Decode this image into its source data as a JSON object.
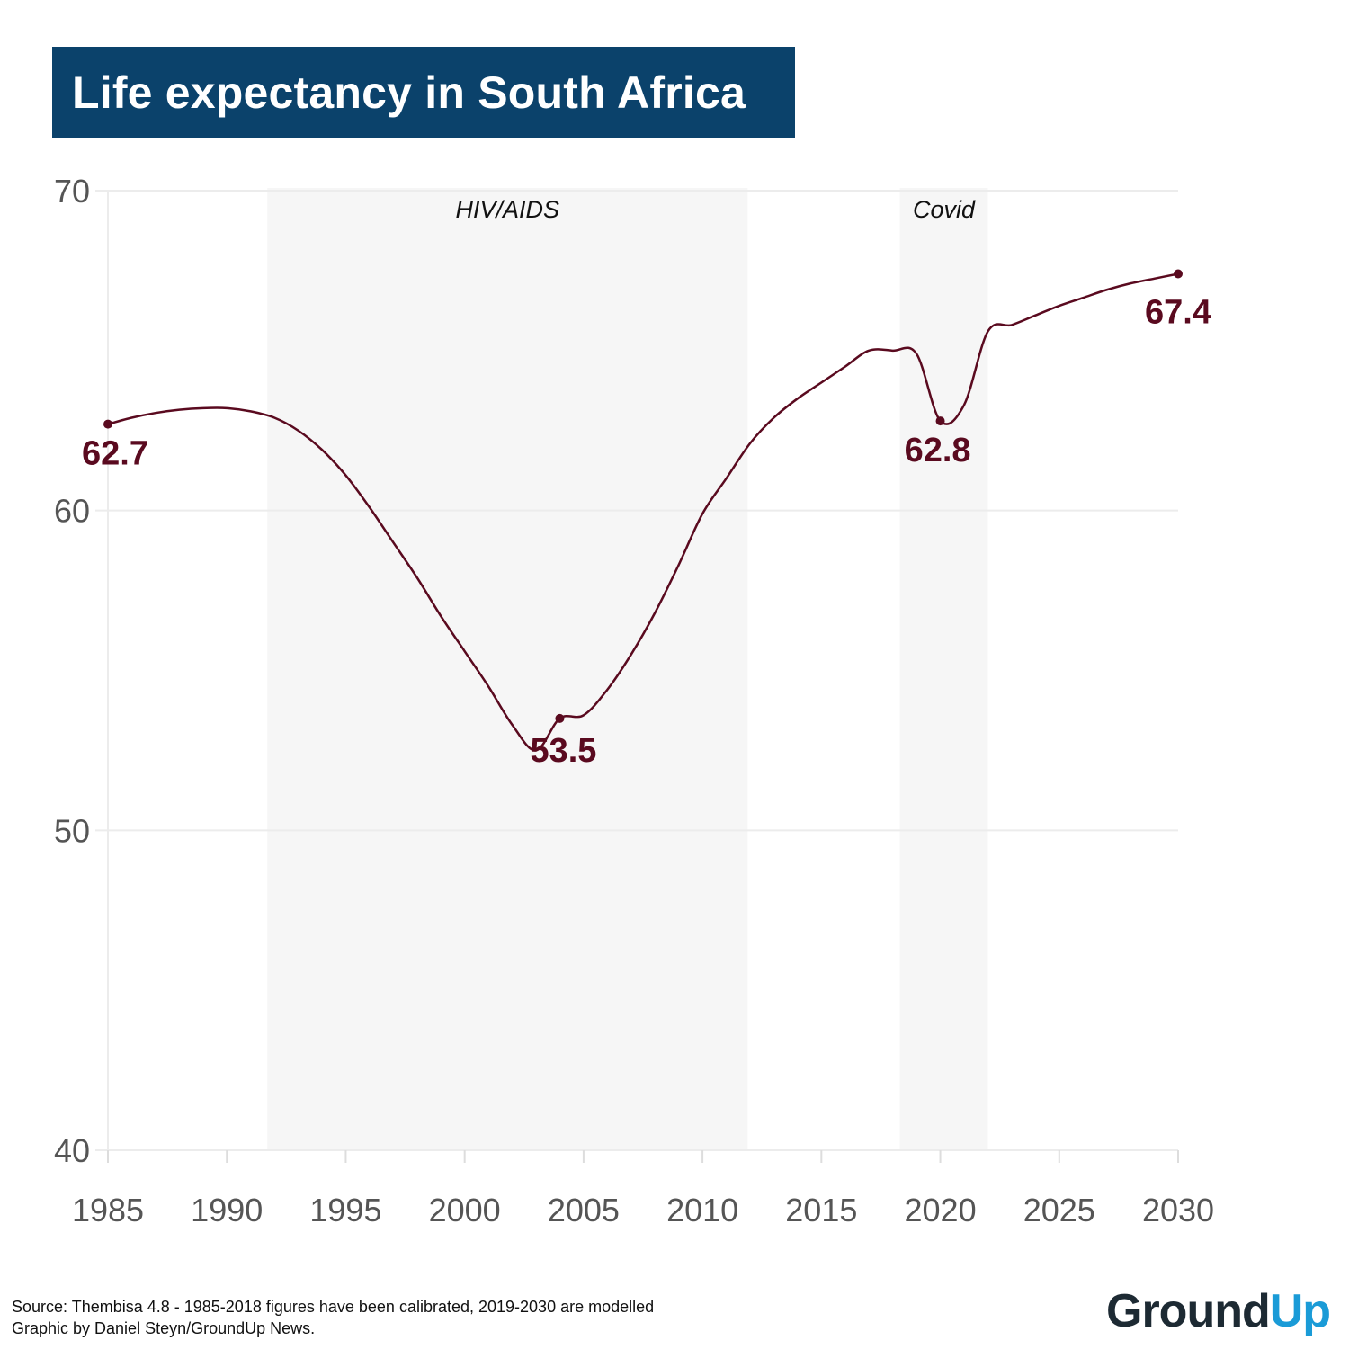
{
  "chart_data": {
    "type": "line",
    "title": "Life expectancy in South Africa",
    "xlabel": "",
    "ylabel": "",
    "xlim": [
      1985,
      2030
    ],
    "ylim": [
      40,
      70
    ],
    "x_ticks": [
      1985,
      1990,
      1995,
      2000,
      2005,
      2010,
      2015,
      2020,
      2025,
      2030
    ],
    "y_ticks": [
      40,
      50,
      60,
      70
    ],
    "grid": true,
    "bands": [
      {
        "label": "HIV/AIDS",
        "start": 1991.7,
        "end": 2011.9,
        "color": "#f6f6f6"
      },
      {
        "label": "Covid",
        "start": 2018.3,
        "end": 2022.0,
        "color": "#f6f6f6"
      }
    ],
    "series": [
      {
        "name": "Life expectancy",
        "color": "#5a0a1f",
        "x": [
          1985,
          1986,
          1987,
          1988,
          1989,
          1990,
          1991,
          1992,
          1993,
          1994,
          1995,
          1996,
          1997,
          1998,
          1999,
          2000,
          2001,
          2002,
          2003,
          2004,
          2005,
          2006,
          2007,
          2008,
          2009,
          2010,
          2011,
          2012,
          2013,
          2014,
          2015,
          2016,
          2017,
          2018,
          2019,
          2020,
          2021,
          2022,
          2023,
          2024,
          2025,
          2026,
          2027,
          2028,
          2029,
          2030
        ],
        "values": [
          62.7,
          62.9,
          63.05,
          63.15,
          63.2,
          63.2,
          63.1,
          62.9,
          62.5,
          61.9,
          61.1,
          60.1,
          59.0,
          57.9,
          56.7,
          55.6,
          54.5,
          53.3,
          52.5,
          53.5,
          53.6,
          54.4,
          55.5,
          56.8,
          58.3,
          59.9,
          61.0,
          62.1,
          62.9,
          63.5,
          64.0,
          64.5,
          65.0,
          65.0,
          64.9,
          62.8,
          63.3,
          65.6,
          65.8,
          66.1,
          66.4,
          66.65,
          66.9,
          67.1,
          67.25,
          67.4
        ]
      }
    ],
    "annotations": [
      {
        "x": 1985,
        "y": 62.7,
        "label": "62.7"
      },
      {
        "x": 2004,
        "y": 53.5,
        "label": "53.5"
      },
      {
        "x": 2020,
        "y": 62.8,
        "label": "62.8"
      },
      {
        "x": 2030,
        "y": 67.4,
        "label": "67.4"
      }
    ]
  },
  "footer": {
    "source": "Source: Thembisa 4.8 - 1985-2018 figures have been calibrated, 2019-2030 are modelled",
    "credit": "Graphic by Daniel Steyn/GroundUp News."
  },
  "logo": {
    "part1": "Ground",
    "part2": "Up"
  },
  "colors": {
    "title_bg": "#0b426b",
    "line": "#5a0a1f",
    "band": "#f6f6f6",
    "grid": "#ececec"
  }
}
